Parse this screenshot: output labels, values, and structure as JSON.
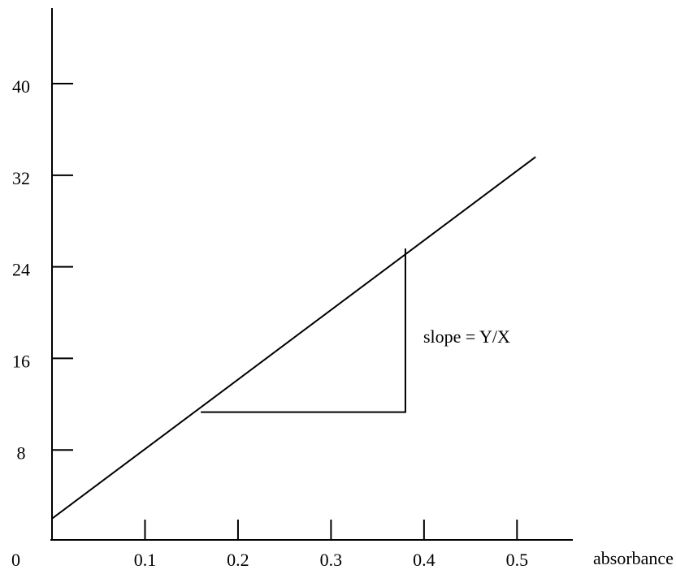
{
  "chart_data": {
    "type": "line",
    "x_label": "absorbance",
    "x": [
      0,
      0.52
    ],
    "series": [
      {
        "color": "#000000",
        "values": [
          2,
          33.6
        ]
      }
    ],
    "xlim": [
      0,
      0.56
    ],
    "xticks": [
      0,
      0.1,
      0.2,
      0.3,
      0.4,
      0.5
    ],
    "ylim": [
      0,
      46.6
    ],
    "yticks": [
      8,
      16,
      24,
      32,
      40
    ],
    "annotation": {
      "text": "slope = Y/X",
      "x": [
        0.16,
        0.38
      ],
      "y": [
        11.3,
        25.6
      ]
    }
  }
}
